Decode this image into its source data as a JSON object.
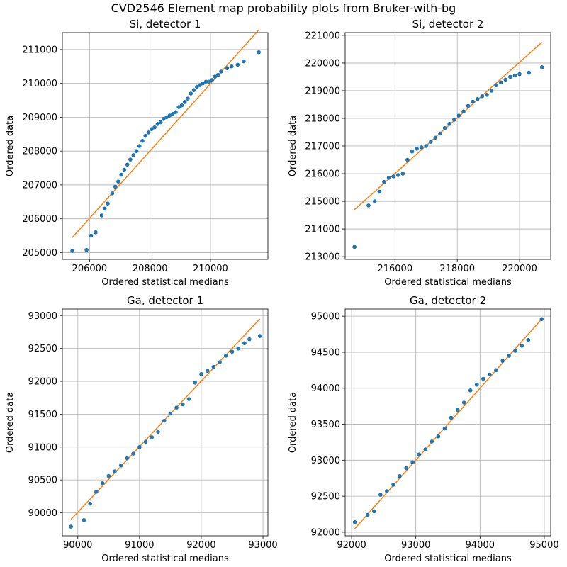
{
  "figure": {
    "suptitle": "CVD2546 Element map probability plots from Bruker-with-bg"
  },
  "style": {
    "point_color": "#1f77b4",
    "line_color": "#ff7f0e",
    "grid_color": "#b0b0b0"
  },
  "chart_data": [
    {
      "type": "scatter",
      "title": "Si, detector 1",
      "xlabel": "Ordered statistical medians",
      "ylabel": "Ordered data",
      "xlim": [
        205100,
        211900
      ],
      "ylim": [
        204800,
        211500
      ],
      "xticks": [
        206000,
        208000,
        210000
      ],
      "yticks": [
        205000,
        206000,
        207000,
        208000,
        209000,
        210000,
        211000
      ],
      "grid": true,
      "fit_line": {
        "x": [
          205430,
          211620
        ],
        "y": [
          205450,
          211600
        ]
      },
      "points": {
        "x": [
          205430,
          205900,
          206050,
          206200,
          206400,
          206500,
          206600,
          206750,
          206850,
          206950,
          207050,
          207150,
          207250,
          207350,
          207450,
          207550,
          207650,
          207750,
          207850,
          207950,
          208050,
          208150,
          208250,
          208350,
          208450,
          208550,
          208650,
          208750,
          208850,
          208950,
          209050,
          209150,
          209250,
          209350,
          209450,
          209550,
          209650,
          209750,
          209850,
          209950,
          210050,
          210150,
          210250,
          210350,
          210550,
          210700,
          210900,
          211100,
          211600
        ],
        "y": [
          205050,
          205080,
          205500,
          205600,
          206100,
          206300,
          206450,
          206750,
          206950,
          207100,
          207300,
          207450,
          207600,
          207750,
          207880,
          208000,
          208150,
          208300,
          208450,
          208550,
          208650,
          208700,
          208800,
          208850,
          208950,
          209000,
          209050,
          209100,
          209150,
          209300,
          209350,
          209450,
          209550,
          209700,
          209800,
          209900,
          209950,
          210000,
          210050,
          210050,
          210100,
          210200,
          210250,
          210350,
          210450,
          210500,
          210550,
          210650,
          210920
        ]
      }
    },
    {
      "type": "scatter",
      "title": "Si, detector 2",
      "xlabel": "Ordered statistical medians",
      "ylabel": "Ordered data",
      "xlim": [
        214400,
        221000
      ],
      "ylim": [
        212900,
        221100
      ],
      "xticks": [
        216000,
        218000,
        220000
      ],
      "yticks": [
        213000,
        214000,
        215000,
        216000,
        217000,
        218000,
        219000,
        220000,
        221000
      ],
      "grid": true,
      "fit_line": {
        "x": [
          214700,
          220720
        ],
        "y": [
          214700,
          220750
        ]
      },
      "points": {
        "x": [
          214700,
          215150,
          215350,
          215500,
          215650,
          215800,
          215950,
          216100,
          216250,
          216400,
          216550,
          216700,
          216850,
          217000,
          217150,
          217300,
          217450,
          217600,
          217750,
          217900,
          218050,
          218200,
          218350,
          218500,
          218650,
          218800,
          218950,
          219100,
          219250,
          219400,
          219550,
          219700,
          219850,
          220000,
          220300,
          220720
        ],
        "y": [
          213350,
          214850,
          215000,
          215350,
          215700,
          215850,
          215900,
          215950,
          216000,
          216500,
          216800,
          216900,
          216950,
          217000,
          217150,
          217300,
          217450,
          217650,
          217800,
          217950,
          218100,
          218250,
          218450,
          218600,
          218700,
          218800,
          218850,
          219000,
          219200,
          219300,
          219400,
          219500,
          219550,
          219600,
          219650,
          219850
        ]
      }
    },
    {
      "type": "scatter",
      "title": "Ga, detector 1",
      "xlabel": "Ordered statistical medians",
      "ylabel": "Ordered data",
      "xlim": [
        89750,
        93080
      ],
      "ylim": [
        89650,
        93100
      ],
      "xticks": [
        90000,
        91000,
        92000,
        93000
      ],
      "yticks": [
        90000,
        90500,
        91000,
        91500,
        92000,
        92500,
        93000
      ],
      "grid": true,
      "fit_line": {
        "x": [
          89890,
          92950
        ],
        "y": [
          89900,
          92950
        ]
      },
      "points": {
        "x": [
          89890,
          90100,
          90200,
          90300,
          90400,
          90500,
          90600,
          90700,
          90800,
          90900,
          91000,
          91100,
          91200,
          91300,
          91400,
          91500,
          91600,
          91700,
          91800,
          91900,
          92000,
          92100,
          92200,
          92300,
          92400,
          92500,
          92600,
          92700,
          92780,
          92950
        ],
        "y": [
          89790,
          89890,
          90140,
          90320,
          90450,
          90560,
          90630,
          90720,
          90830,
          90900,
          91000,
          91080,
          91150,
          91230,
          91400,
          91510,
          91600,
          91650,
          91730,
          91980,
          92110,
          92160,
          92220,
          92290,
          92390,
          92450,
          92500,
          92580,
          92640,
          92690
        ]
      }
    },
    {
      "type": "scatter",
      "title": "Ga, detector 2",
      "xlabel": "Ordered statistical medians",
      "ylabel": "Ordered data",
      "xlim": [
        91900,
        95100
      ],
      "ylim": [
        91950,
        95100
      ],
      "xticks": [
        92000,
        93000,
        94000,
        95000
      ],
      "yticks": [
        92000,
        92500,
        93000,
        93500,
        94000,
        94500,
        95000
      ],
      "grid": true,
      "fit_line": {
        "x": [
          92050,
          94980
        ],
        "y": [
          92050,
          94980
        ]
      },
      "points": {
        "x": [
          92050,
          92250,
          92350,
          92450,
          92550,
          92650,
          92750,
          92850,
          92950,
          93050,
          93150,
          93250,
          93350,
          93450,
          93550,
          93650,
          93750,
          93850,
          93950,
          94050,
          94150,
          94250,
          94350,
          94450,
          94550,
          94650,
          94750,
          94960
        ],
        "y": [
          92140,
          92240,
          92290,
          92520,
          92570,
          92660,
          92780,
          92890,
          92970,
          93080,
          93150,
          93260,
          93330,
          93440,
          93590,
          93700,
          93800,
          93970,
          94050,
          94130,
          94190,
          94250,
          94380,
          94450,
          94520,
          94590,
          94670,
          94960
        ]
      }
    }
  ]
}
